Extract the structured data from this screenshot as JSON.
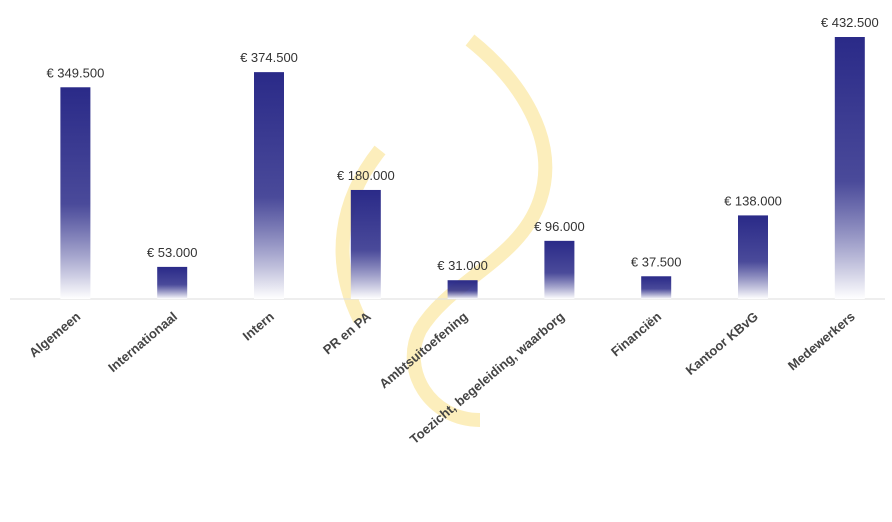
{
  "chart_data": {
    "type": "bar",
    "categories": [
      "Algemeen",
      "Internationaal",
      "Intern",
      "PR en PA",
      "Ambtsuitoefening",
      "Toezicht, begeleiding, waarborg",
      "Financiën",
      "Kantoor KBvG",
      "Medewerkers"
    ],
    "values": [
      349500,
      53000,
      374500,
      180000,
      31000,
      96000,
      37500,
      138000,
      432500
    ],
    "value_labels": [
      "€ 349.500",
      "€ 53.000",
      "€ 374.500",
      "€ 180.000",
      "€ 31.000",
      "€ 96.000",
      "€ 37.500",
      "€ 138.000",
      "€ 432.500"
    ],
    "color": "#2a2a88"
  }
}
